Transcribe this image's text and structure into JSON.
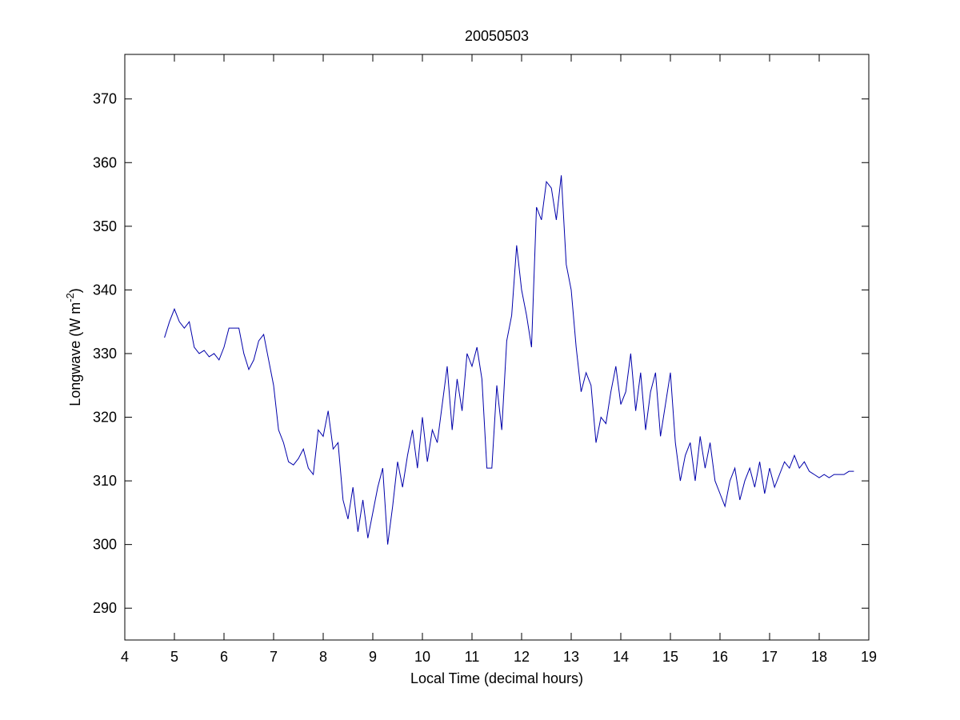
{
  "chart_data": {
    "type": "line",
    "title": "20050503",
    "xlabel": "Local Time (decimal hours)",
    "ylabel_parts": [
      "Longwave (W m",
      "-2",
      ")"
    ],
    "color": "#0000aa",
    "xlim": [
      4,
      19
    ],
    "xticks": [
      4,
      5,
      6,
      7,
      8,
      9,
      10,
      11,
      12,
      13,
      14,
      15,
      16,
      17,
      18,
      19
    ],
    "ylim": [
      285,
      377
    ],
    "yticks": [
      290,
      300,
      310,
      320,
      330,
      340,
      350,
      360,
      370
    ],
    "grid": false,
    "x": [
      4.8,
      4.9,
      5.0,
      5.1,
      5.2,
      5.3,
      5.4,
      5.5,
      5.6,
      5.7,
      5.8,
      5.9,
      6.0,
      6.1,
      6.2,
      6.3,
      6.4,
      6.5,
      6.6,
      6.7,
      6.8,
      6.9,
      7.0,
      7.1,
      7.2,
      7.3,
      7.4,
      7.5,
      7.6,
      7.7,
      7.8,
      7.9,
      8.0,
      8.1,
      8.2,
      8.3,
      8.4,
      8.5,
      8.6,
      8.7,
      8.8,
      8.9,
      9.0,
      9.1,
      9.2,
      9.3,
      9.4,
      9.5,
      9.6,
      9.7,
      9.8,
      9.9,
      10.0,
      10.1,
      10.2,
      10.3,
      10.4,
      10.5,
      10.6,
      10.7,
      10.8,
      10.9,
      11.0,
      11.1,
      11.2,
      11.3,
      11.4,
      11.5,
      11.6,
      11.7,
      11.8,
      11.9,
      12.0,
      12.1,
      12.2,
      12.3,
      12.4,
      12.5,
      12.6,
      12.7,
      12.8,
      12.9,
      13.0,
      13.1,
      13.2,
      13.3,
      13.4,
      13.5,
      13.6,
      13.7,
      13.8,
      13.9,
      14.0,
      14.1,
      14.2,
      14.3,
      14.4,
      14.5,
      14.6,
      14.7,
      14.8,
      14.9,
      15.0,
      15.1,
      15.2,
      15.3,
      15.4,
      15.5,
      15.6,
      15.7,
      15.8,
      15.9,
      16.0,
      16.1,
      16.2,
      16.3,
      16.4,
      16.5,
      16.6,
      16.7,
      16.8,
      16.9,
      17.0,
      17.1,
      17.2,
      17.3,
      17.4,
      17.5,
      17.6,
      17.7,
      17.8,
      17.9,
      18.0,
      18.1,
      18.2,
      18.3,
      18.4,
      18.5,
      18.6,
      18.7
    ],
    "values": [
      332.5,
      335,
      337,
      335,
      334,
      335,
      331,
      330,
      330.5,
      329.5,
      330,
      329,
      331,
      334,
      334,
      334,
      330,
      327.5,
      329,
      332,
      333,
      329,
      325,
      318,
      316,
      313,
      312.5,
      313.5,
      315,
      312,
      311,
      318,
      317,
      321,
      315,
      316,
      307,
      304,
      309,
      302,
      307,
      301,
      305,
      309,
      312,
      300,
      306,
      313,
      309,
      314,
      318,
      312,
      320,
      313,
      318,
      316,
      322,
      328,
      318,
      326,
      321,
      330,
      328,
      331,
      326,
      312,
      312,
      325,
      318,
      332,
      336,
      347,
      340,
      336,
      331,
      353,
      351,
      357,
      356,
      351,
      358,
      344,
      340,
      331,
      324,
      327,
      325,
      316,
      320,
      319,
      324,
      328,
      322,
      324,
      330,
      321,
      327,
      318,
      324,
      327,
      317,
      322,
      327,
      316,
      310,
      314,
      316,
      310,
      317,
      312,
      316,
      310,
      308,
      306,
      310,
      312,
      307,
      310,
      312,
      309,
      313,
      308,
      312,
      309,
      311,
      313,
      312,
      314,
      312,
      313,
      311.5,
      311,
      310.5,
      311,
      310.5,
      311,
      311,
      311,
      311.5,
      311.5
    ]
  }
}
